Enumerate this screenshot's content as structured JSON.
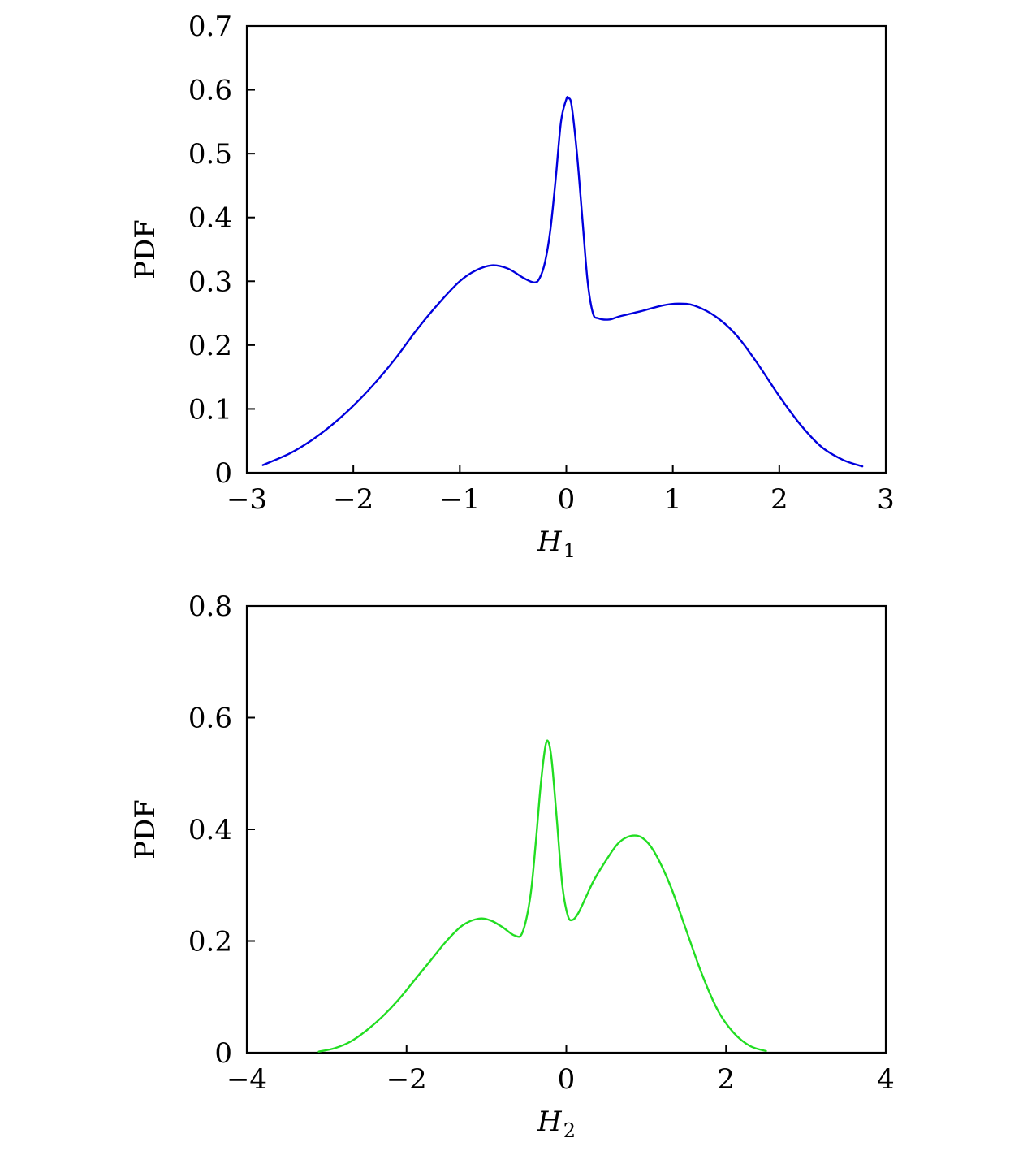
{
  "chart_data": [
    {
      "type": "line",
      "title": "",
      "xlabel": "H",
      "xlabel_sub": "1",
      "ylabel": "PDF",
      "xlim": [
        -3,
        3
      ],
      "ylim": [
        0,
        0.7
      ],
      "xticks": [
        -3,
        -2,
        -1,
        0,
        1,
        2,
        3
      ],
      "xtick_labels": [
        "−3",
        "−2",
        "−1",
        "0",
        "1",
        "2",
        "3"
      ],
      "yticks": [
        0,
        0.1,
        0.2,
        0.3,
        0.4,
        0.5,
        0.6,
        0.7
      ],
      "ytick_labels": [
        "0",
        "0.1",
        "0.2",
        "0.3",
        "0.4",
        "0.5",
        "0.6",
        "0.7"
      ],
      "grid": false,
      "series": [
        {
          "color": "#0000dd",
          "x": [
            -2.85,
            -2.6,
            -2.4,
            -2.2,
            -2.0,
            -1.8,
            -1.6,
            -1.4,
            -1.2,
            -1.0,
            -0.85,
            -0.7,
            -0.55,
            -0.4,
            -0.3,
            -0.25,
            -0.2,
            -0.15,
            -0.1,
            -0.05,
            0.0,
            0.02,
            0.05,
            0.1,
            0.15,
            0.2,
            0.25,
            0.3,
            0.4,
            0.5,
            0.7,
            0.9,
            1.05,
            1.2,
            1.4,
            1.6,
            1.8,
            2.0,
            2.2,
            2.4,
            2.6,
            2.78
          ],
          "y": [
            0.012,
            0.03,
            0.05,
            0.075,
            0.105,
            0.14,
            0.18,
            0.225,
            0.265,
            0.3,
            0.317,
            0.325,
            0.32,
            0.305,
            0.298,
            0.305,
            0.33,
            0.38,
            0.46,
            0.55,
            0.585,
            0.587,
            0.575,
            0.5,
            0.4,
            0.3,
            0.25,
            0.242,
            0.24,
            0.245,
            0.253,
            0.262,
            0.265,
            0.262,
            0.245,
            0.215,
            0.17,
            0.12,
            0.075,
            0.04,
            0.02,
            0.01
          ]
        }
      ]
    },
    {
      "type": "line",
      "title": "",
      "xlabel": "H",
      "xlabel_sub": "2",
      "ylabel": "PDF",
      "xlim": [
        -4,
        4
      ],
      "ylim": [
        0,
        0.8
      ],
      "xticks": [
        -4,
        -2,
        0,
        2,
        4
      ],
      "xtick_labels": [
        "−4",
        "−2",
        "0",
        "2",
        "4"
      ],
      "yticks": [
        0,
        0.2,
        0.4,
        0.6,
        0.8
      ],
      "ytick_labels": [
        "0",
        "0.2",
        "0.4",
        "0.6",
        "0.8"
      ],
      "grid": false,
      "series": [
        {
          "color": "#22dd22",
          "x": [
            -3.1,
            -2.9,
            -2.7,
            -2.5,
            -2.3,
            -2.1,
            -1.9,
            -1.7,
            -1.5,
            -1.3,
            -1.1,
            -0.95,
            -0.8,
            -0.65,
            -0.55,
            -0.45,
            -0.38,
            -0.32,
            -0.26,
            -0.22,
            -0.18,
            -0.12,
            -0.05,
            0.02,
            0.08,
            0.15,
            0.25,
            0.35,
            0.5,
            0.65,
            0.8,
            0.95,
            1.1,
            1.3,
            1.5,
            1.7,
            1.9,
            2.1,
            2.3,
            2.5
          ],
          "y": [
            0.002,
            0.008,
            0.02,
            0.04,
            0.065,
            0.095,
            0.13,
            0.165,
            0.2,
            0.228,
            0.24,
            0.237,
            0.225,
            0.21,
            0.215,
            0.28,
            0.38,
            0.48,
            0.55,
            0.555,
            0.52,
            0.42,
            0.3,
            0.245,
            0.238,
            0.25,
            0.28,
            0.31,
            0.345,
            0.375,
            0.388,
            0.385,
            0.36,
            0.3,
            0.22,
            0.14,
            0.075,
            0.035,
            0.012,
            0.003
          ]
        }
      ]
    }
  ]
}
